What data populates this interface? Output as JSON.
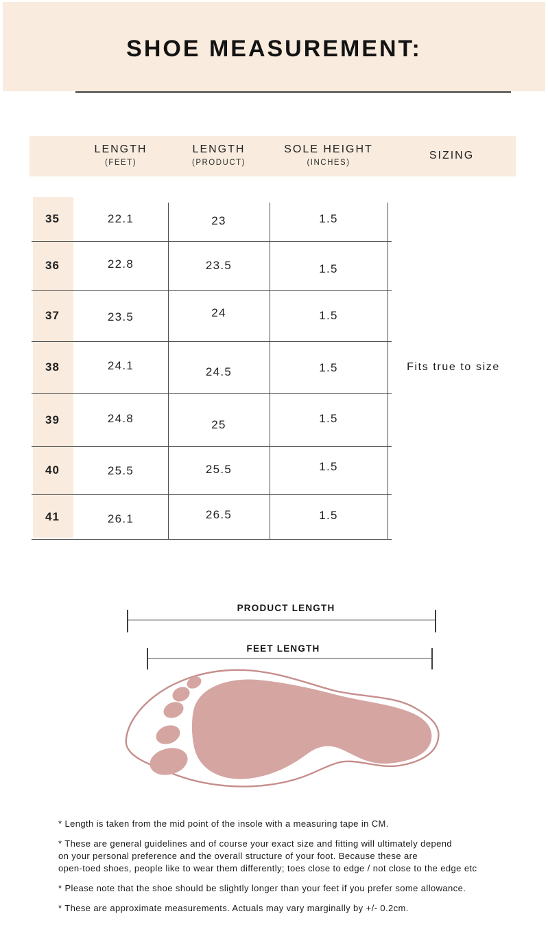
{
  "page": {
    "title": "SHOE MEASUREMENT:"
  },
  "table": {
    "headers": {
      "feet": {
        "label": "LENGTH",
        "sub": "(FEET)"
      },
      "product": {
        "label": "LENGTH",
        "sub": "(PRODUCT)"
      },
      "sole": {
        "label": "SOLE HEIGHT",
        "sub": "(INCHES)"
      },
      "sizing": {
        "label": "SIZING"
      }
    },
    "columns": [
      "size",
      "feet_length",
      "product_length",
      "sole_height"
    ],
    "rows": [
      {
        "size": "35",
        "feet_length": "22.1",
        "product_length": "23",
        "sole_height": "1.5"
      },
      {
        "size": "36",
        "feet_length": "22.8",
        "product_length": "23.5",
        "sole_height": "1.5"
      },
      {
        "size": "37",
        "feet_length": "23.5",
        "product_length": "24",
        "sole_height": "1.5"
      },
      {
        "size": "38",
        "feet_length": "24.1",
        "product_length": "24.5",
        "sole_height": "1.5"
      },
      {
        "size": "39",
        "feet_length": "24.8",
        "product_length": "25",
        "sole_height": "1.5"
      },
      {
        "size": "40",
        "feet_length": "25.5",
        "product_length": "25.5",
        "sole_height": "1.5"
      },
      {
        "size": "41",
        "feet_length": "26.1",
        "product_length": "26.5",
        "sole_height": "1.5"
      }
    ],
    "sizing_note": "Fits true to size"
  },
  "diagram": {
    "product_length_label": "PRODUCT LENGTH",
    "feet_length_label": "FEET LENGTH"
  },
  "notes": [
    "* Length is taken from the mid point of the insole with a measuring tape in CM.",
    "* These are general guidelines and of course your exact size and fitting will ultimately depend\non your personal preference and the overall structure of your foot. Because these are\nopen-toed shoes, people like to wear them differently; toes close to edge / not close to the edge etc",
    "* Please note that the shoe should be slightly longer than your feet if you prefer some allowance.",
    "* These are approximate measurements. Actuals may vary marginally by +/- 0.2cm."
  ],
  "colors": {
    "band_background": "#f9ecde",
    "table_line": "#4c4c4c",
    "foot_fill": "#d5a5a2",
    "foot_outline": "#c58f8c",
    "text": "#1c1c1c"
  }
}
